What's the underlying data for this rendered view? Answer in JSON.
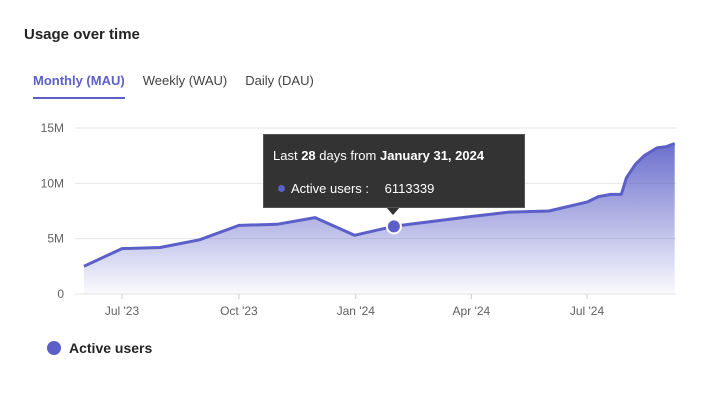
{
  "title": "Usage over time",
  "tabs": [
    {
      "label": "Monthly (MAU)",
      "active": true
    },
    {
      "label": "Weekly (WAU)",
      "active": false
    },
    {
      "label": "Daily (DAU)",
      "active": false
    }
  ],
  "tooltip": {
    "prefix": "Last",
    "days": "28",
    "mid": "days from",
    "date": "January 31, 2024",
    "series": "Active users :",
    "value": "6113339"
  },
  "legend": {
    "label": "Active users"
  },
  "colors": {
    "series": "#5b5fc7"
  },
  "chart_data": {
    "type": "area",
    "ylim": [
      0,
      15000000
    ],
    "yticks": [
      {
        "v": 0,
        "label": "0"
      },
      {
        "v": 5000000,
        "label": "5M"
      },
      {
        "v": 10000000,
        "label": "10M"
      },
      {
        "v": 15000000,
        "label": "15M"
      }
    ],
    "xticks": [
      {
        "d": "2023-07-01",
        "label": "Jul '23"
      },
      {
        "d": "2023-10-01",
        "label": "Oct '23"
      },
      {
        "d": "2024-01-01",
        "label": "Jan '24"
      },
      {
        "d": "2024-04-01",
        "label": "Apr '24"
      },
      {
        "d": "2024-07-01",
        "label": "Jul '24"
      }
    ],
    "grid": true,
    "legend": "bottom-left",
    "series": [
      {
        "name": "Active users",
        "points": [
          [
            "2023-06-01",
            2500000
          ],
          [
            "2023-07-01",
            4100000
          ],
          [
            "2023-07-31",
            4200000
          ],
          [
            "2023-08-31",
            4900000
          ],
          [
            "2023-10-01",
            6200000
          ],
          [
            "2023-10-31",
            6300000
          ],
          [
            "2023-11-30",
            6900000
          ],
          [
            "2023-12-31",
            5300000
          ],
          [
            "2024-01-31",
            6113339
          ],
          [
            "2024-04-01",
            7000000
          ],
          [
            "2024-05-01",
            7400000
          ],
          [
            "2024-06-01",
            7500000
          ],
          [
            "2024-07-01",
            8300000
          ],
          [
            "2024-07-10",
            8800000
          ],
          [
            "2024-07-20",
            9000000
          ],
          [
            "2024-07-28",
            9000000
          ],
          [
            "2024-08-01",
            10500000
          ],
          [
            "2024-08-08",
            11700000
          ],
          [
            "2024-08-15",
            12500000
          ],
          [
            "2024-08-25",
            13200000
          ],
          [
            "2024-09-01",
            13300000
          ],
          [
            "2024-09-08",
            13600000
          ]
        ]
      }
    ],
    "highlight": "2024-01-31"
  }
}
